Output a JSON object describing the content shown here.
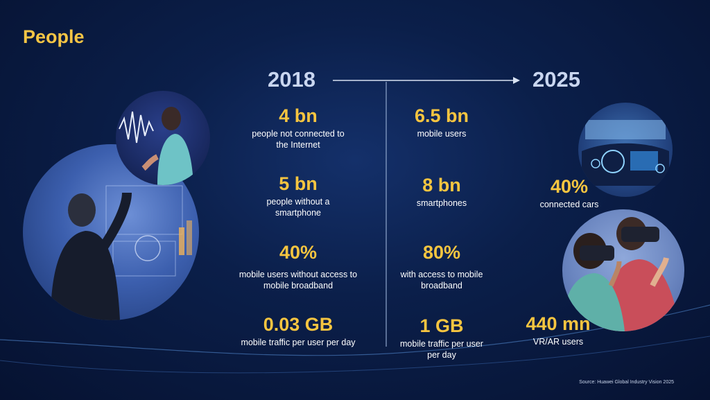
{
  "title": "People",
  "years": {
    "left": "2018",
    "right": "2025"
  },
  "stats_2018": [
    {
      "value": "4 bn",
      "desc": "people not connected to the Internet"
    },
    {
      "value": "5 bn",
      "desc": "people without a smartphone"
    },
    {
      "value": "40%",
      "desc": "mobile users without access to mobile broadband"
    },
    {
      "value": "0.03 GB",
      "desc": "mobile traffic per user per day"
    }
  ],
  "stats_2025": [
    {
      "value": "6.5 bn",
      "desc": "mobile users"
    },
    {
      "value": "8 bn",
      "desc": "smartphones"
    },
    {
      "value": "80%",
      "desc": "with access to mobile broadband"
    },
    {
      "value": "1 GB",
      "desc": "mobile traffic per user per day"
    }
  ],
  "stats_side": [
    {
      "value": "40%",
      "desc": "connected cars"
    },
    {
      "value": "440 mn",
      "desc": "VR/AR users"
    }
  ],
  "source": "Source: Huawei Global Industry Vision 2025",
  "colors": {
    "accent": "#f6c540",
    "year": "#c9d6f0",
    "background": "#0b1f4a"
  }
}
